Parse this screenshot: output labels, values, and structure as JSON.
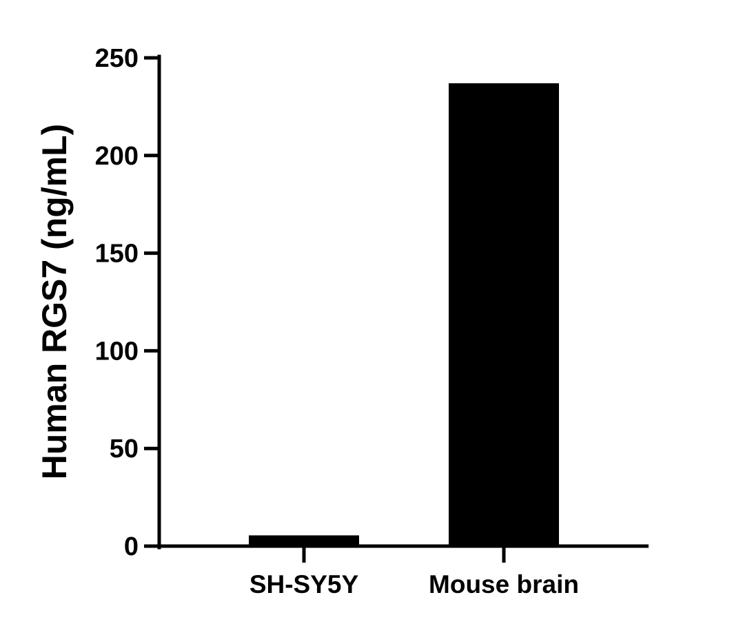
{
  "chart_data": {
    "type": "bar",
    "title": "",
    "xlabel": "",
    "ylabel": "Human RGS7 (ng/mL)",
    "categories": [
      "SH-SY5Y",
      "Mouse brain"
    ],
    "values": [
      5.5,
      237
    ],
    "ylim": [
      0,
      250
    ],
    "yticks": [
      0,
      50,
      100,
      150,
      200,
      250
    ],
    "ytick_labels": [
      "0",
      "50",
      "100",
      "150",
      "200",
      "250"
    ],
    "grid": false,
    "legend": "none",
    "bar_color": "#000000",
    "axis_color": "#000000"
  }
}
